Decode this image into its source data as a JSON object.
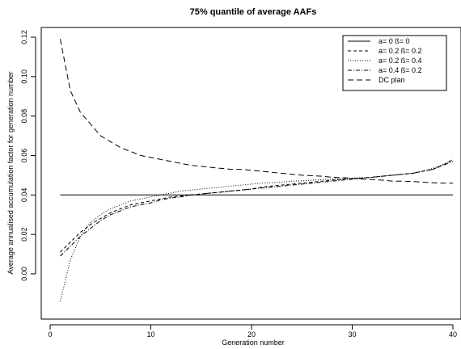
{
  "chart_data": {
    "type": "line",
    "title": "75% quantile of average AAFs",
    "xlabel": "Generation number",
    "ylabel": "Average annualised accumulation factor for generation number",
    "xlim": [
      1,
      40
    ],
    "ylim": [
      -0.015,
      0.122
    ],
    "xticks": [
      0,
      10,
      20,
      30,
      40
    ],
    "yticks": [
      0.0,
      0.02,
      0.04,
      0.06,
      0.08,
      0.1,
      0.12
    ],
    "ytick_labels": [
      "0.00",
      "0.02",
      "0.04",
      "0.06",
      "0.08",
      "0.10",
      "0.12"
    ],
    "legend_position": "top-right",
    "grid": false,
    "x": [
      1,
      2,
      3,
      4,
      5,
      6,
      7,
      8,
      9,
      10,
      11,
      12,
      13,
      14,
      15,
      16,
      17,
      18,
      19,
      20,
      21,
      22,
      23,
      24,
      25,
      26,
      27,
      28,
      29,
      30,
      31,
      32,
      33,
      34,
      35,
      36,
      37,
      38,
      39,
      40
    ],
    "series": [
      {
        "name": "a= 0  ß= 0",
        "dash": "solid",
        "values": [
          0.04,
          0.04,
          0.04,
          0.04,
          0.04,
          0.04,
          0.04,
          0.04,
          0.04,
          0.04,
          0.04,
          0.04,
          0.04,
          0.04,
          0.04,
          0.04,
          0.04,
          0.04,
          0.04,
          0.04,
          0.04,
          0.04,
          0.04,
          0.04,
          0.04,
          0.04,
          0.04,
          0.04,
          0.04,
          0.04,
          0.04,
          0.04,
          0.04,
          0.04,
          0.04,
          0.04,
          0.04,
          0.04,
          0.04,
          0.04
        ]
      },
      {
        "name": "a= 0.2  ß= 0.2",
        "dash": "short-dash",
        "values": [
          0.011,
          0.016,
          0.021,
          0.025,
          0.028,
          0.031,
          0.033,
          0.035,
          0.036,
          0.037,
          0.038,
          0.039,
          0.0395,
          0.04,
          0.0405,
          0.041,
          0.0415,
          0.042,
          0.0425,
          0.043,
          0.044,
          0.0445,
          0.045,
          0.0455,
          0.046,
          0.0465,
          0.047,
          0.0475,
          0.048,
          0.0483,
          0.0486,
          0.049,
          0.0495,
          0.05,
          0.0505,
          0.051,
          0.052,
          0.053,
          0.055,
          0.058
        ]
      },
      {
        "name": "a= 0.2  ß= 0.4",
        "dash": "dotted",
        "values": [
          -0.014,
          0.007,
          0.019,
          0.026,
          0.03,
          0.033,
          0.035,
          0.037,
          0.038,
          0.039,
          0.04,
          0.041,
          0.042,
          0.0425,
          0.043,
          0.0435,
          0.044,
          0.0445,
          0.045,
          0.0455,
          0.046,
          0.0462,
          0.0465,
          0.047,
          0.0472,
          0.0475,
          0.0478,
          0.048,
          0.0482,
          0.0485,
          0.0488,
          0.049,
          0.0495,
          0.05,
          0.0505,
          0.051,
          0.052,
          0.0535,
          0.0555,
          0.058
        ]
      },
      {
        "name": "a= 0.4  ß= 0.2",
        "dash": "dash-dot",
        "values": [
          0.009,
          0.014,
          0.019,
          0.023,
          0.027,
          0.03,
          0.032,
          0.034,
          0.035,
          0.036,
          0.0375,
          0.0385,
          0.039,
          0.04,
          0.0405,
          0.041,
          0.0415,
          0.042,
          0.0425,
          0.043,
          0.0435,
          0.044,
          0.0445,
          0.045,
          0.0455,
          0.046,
          0.0465,
          0.047,
          0.0475,
          0.048,
          0.0485,
          0.049,
          0.0495,
          0.05,
          0.0505,
          0.051,
          0.052,
          0.053,
          0.055,
          0.057
        ]
      },
      {
        "name": "DC plan",
        "dash": "long-dash",
        "values": [
          0.119,
          0.093,
          0.082,
          0.076,
          0.07,
          0.067,
          0.064,
          0.062,
          0.06,
          0.059,
          0.058,
          0.057,
          0.056,
          0.055,
          0.0545,
          0.054,
          0.0535,
          0.053,
          0.053,
          0.0525,
          0.052,
          0.0515,
          0.051,
          0.0505,
          0.05,
          0.0498,
          0.0495,
          0.049,
          0.0488,
          0.0485,
          0.048,
          0.0478,
          0.0475,
          0.047,
          0.047,
          0.0468,
          0.0465,
          0.0462,
          0.046,
          0.046
        ]
      }
    ]
  }
}
